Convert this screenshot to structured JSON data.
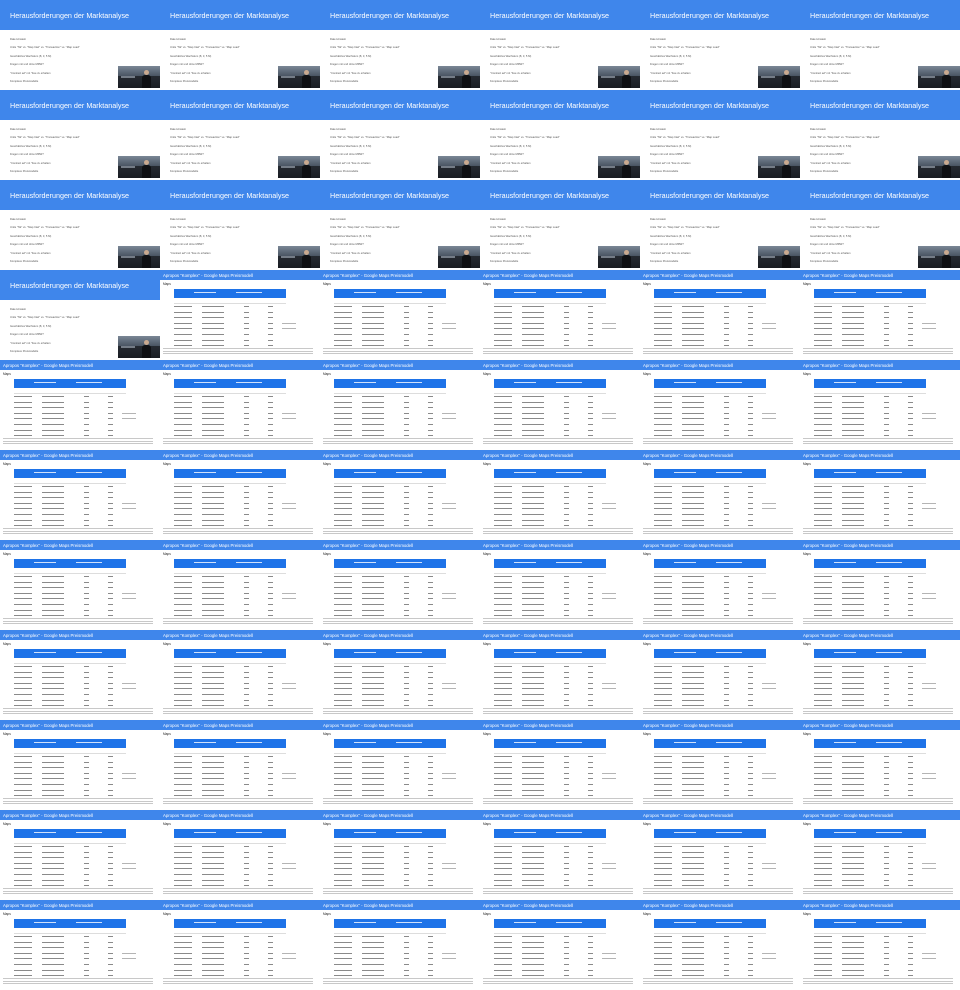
{
  "slide": {
    "title": "Herausforderungen der Marktanalyse",
    "bullets": [
      "Date Hinstein",
      "Units \"Tal\" vs. \"Map Intel\" vs. \"Transaction\" vs. \"Map Load\"",
      "Geschätztes Wachstum (8, 3, 5 M)",
      "Fragen mit und ohne MRW?",
      "\"Contract ad\" mit \"Fee zu erhalten",
      "Komplexe Preismodelle"
    ]
  },
  "table_slide": {
    "title": "Apropos \"Komplex\" - Google Maps Preismodell",
    "subtitle": "Maps"
  },
  "frames": {
    "slide_count": 19,
    "table_count": 47
  },
  "colors": {
    "header_blue": "#3f86eb",
    "banner_blue": "#1e73e8"
  },
  "icons": {
    "presenter": "video-presenter-thumbnail"
  }
}
